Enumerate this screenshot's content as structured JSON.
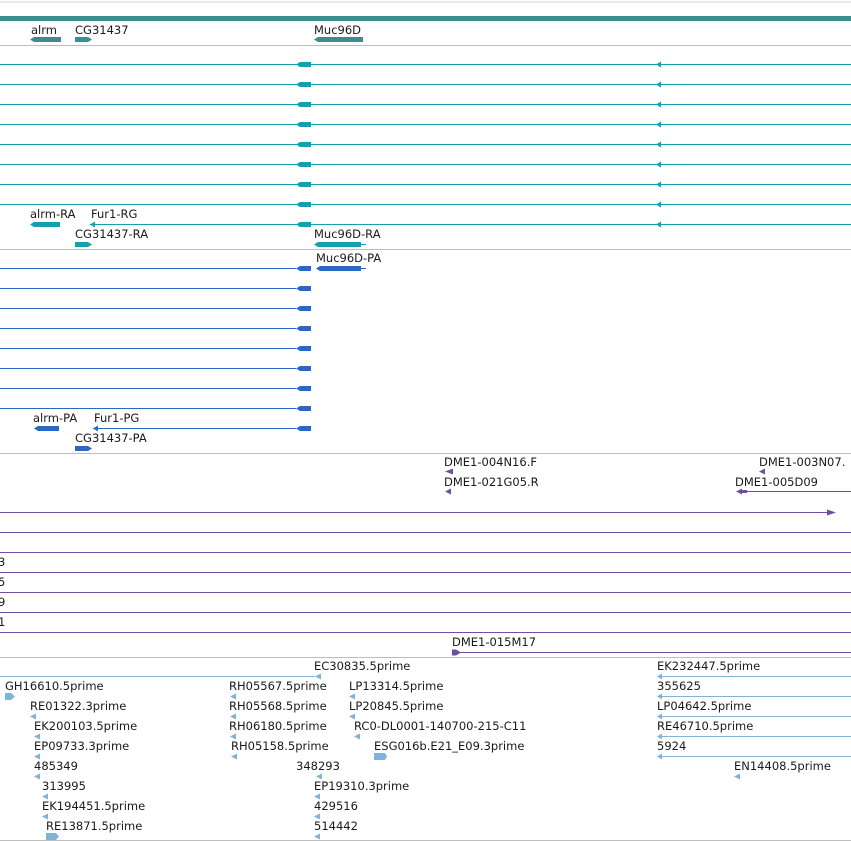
{
  "colors": {
    "gene": "#2e8b8b",
    "transcript": "#13a0b0",
    "protein": "#2a68c4",
    "clone": "#6e4fa0",
    "est": "#7fb4d6",
    "divider": "#bdbdbd"
  },
  "tracks": {
    "genes": {
      "features": [
        {
          "label": "alrm",
          "strand": "-"
        },
        {
          "label": "CG31437",
          "strand": "+"
        },
        {
          "label": "Muc96D",
          "strand": "-"
        }
      ]
    },
    "transcripts": {
      "features": [
        {
          "label": "alrm-RA",
          "strand": "-"
        },
        {
          "label": "Fur1-RG",
          "strand": "-"
        },
        {
          "label": "CG31437-RA",
          "strand": "+"
        },
        {
          "label": "Muc96D-RA",
          "strand": "-"
        }
      ]
    },
    "proteins": {
      "features": [
        {
          "label": "Muc96D-PA",
          "strand": "-"
        },
        {
          "label": "alrm-PA",
          "strand": "-"
        },
        {
          "label": "Fur1-PG",
          "strand": "-"
        },
        {
          "label": "CG31437-PA",
          "strand": "+"
        }
      ]
    },
    "clones": {
      "features": [
        {
          "label": "DME1-004N16.F",
          "strand": "-"
        },
        {
          "label": "DME1-021G05.R",
          "strand": "-"
        },
        {
          "label": "DME1-003N07.",
          "strand": "-"
        },
        {
          "label": "DME1-005D09",
          "strand": "-"
        },
        {
          "label": "3",
          "strand": "+"
        },
        {
          "label": "5",
          "strand": "+"
        },
        {
          "label": "9",
          "strand": "+"
        },
        {
          "label": "1",
          "strand": "+"
        },
        {
          "label": "DME1-015M17",
          "strand": "+"
        }
      ]
    },
    "ests": {
      "features": [
        {
          "label": "EC30835.5prime",
          "strand": "-"
        },
        {
          "label": "EK232447.5prime",
          "strand": "-"
        },
        {
          "label": "GH16610.5prime",
          "strand": "+"
        },
        {
          "label": "RH05567.5prime",
          "strand": "-"
        },
        {
          "label": "LP13314.5prime",
          "strand": "-"
        },
        {
          "label": "355625",
          "strand": "-"
        },
        {
          "label": "RE01322.3prime",
          "strand": "-"
        },
        {
          "label": "RH05568.5prime",
          "strand": "-"
        },
        {
          "label": "LP20845.5prime",
          "strand": "-"
        },
        {
          "label": "LP04642.5prime",
          "strand": "-"
        },
        {
          "label": "EK200103.5prime",
          "strand": "-"
        },
        {
          "label": "RH06180.5prime",
          "strand": "-"
        },
        {
          "label": "RC0-DL0001-140700-215-C11",
          "strand": "-"
        },
        {
          "label": "RE46710.5prime",
          "strand": "-"
        },
        {
          "label": "EP09733.3prime",
          "strand": "-"
        },
        {
          "label": "RH05158.5prime",
          "strand": "-"
        },
        {
          "label": "ESG016b.E21_E09.3prime",
          "strand": "+"
        },
        {
          "label": "5924",
          "strand": "-"
        },
        {
          "label": "485349",
          "strand": "-"
        },
        {
          "label": "348293",
          "strand": "-"
        },
        {
          "label": "EN14408.5prime",
          "strand": "-"
        },
        {
          "label": "313995",
          "strand": "-"
        },
        {
          "label": "EP19310.3prime",
          "strand": "-"
        },
        {
          "label": "EK194451.5prime",
          "strand": "-"
        },
        {
          "label": "429516",
          "strand": "-"
        },
        {
          "label": "RE13871.5prime",
          "strand": "+"
        },
        {
          "label": "514442",
          "strand": "-"
        }
      ]
    }
  }
}
